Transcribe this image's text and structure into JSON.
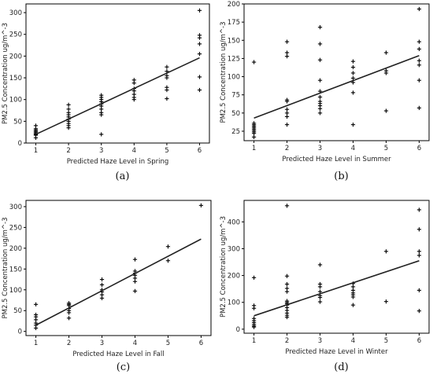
{
  "chart_data": [
    {
      "type": "scatter",
      "panel_label": "(a)",
      "xlabel": "Predicted Haze Level in Spring",
      "ylabel": "PM2.5 Concentration ug/m^-3",
      "xlim": [
        0.7,
        6.3
      ],
      "ylim": [
        0,
        320
      ],
      "xticks": [
        1,
        2,
        3,
        4,
        5,
        6
      ],
      "yticks": [
        0,
        50,
        100,
        150,
        200,
        250,
        300
      ],
      "marker": "+",
      "points": [
        {
          "x": 1,
          "y": 40
        },
        {
          "x": 1,
          "y": 33
        },
        {
          "x": 1,
          "y": 30
        },
        {
          "x": 1,
          "y": 27
        },
        {
          "x": 1,
          "y": 25
        },
        {
          "x": 1,
          "y": 22
        },
        {
          "x": 1,
          "y": 20
        },
        {
          "x": 1,
          "y": 18
        },
        {
          "x": 1,
          "y": 12
        },
        {
          "x": 2,
          "y": 88
        },
        {
          "x": 2,
          "y": 78
        },
        {
          "x": 2,
          "y": 70
        },
        {
          "x": 2,
          "y": 65
        },
        {
          "x": 2,
          "y": 60
        },
        {
          "x": 2,
          "y": 55
        },
        {
          "x": 2,
          "y": 50
        },
        {
          "x": 2,
          "y": 45
        },
        {
          "x": 2,
          "y": 40
        },
        {
          "x": 2,
          "y": 35
        },
        {
          "x": 3,
          "y": 110
        },
        {
          "x": 3,
          "y": 105
        },
        {
          "x": 3,
          "y": 100
        },
        {
          "x": 3,
          "y": 95
        },
        {
          "x": 3,
          "y": 90
        },
        {
          "x": 3,
          "y": 85
        },
        {
          "x": 3,
          "y": 78
        },
        {
          "x": 3,
          "y": 70
        },
        {
          "x": 3,
          "y": 65
        },
        {
          "x": 3,
          "y": 20
        },
        {
          "x": 4,
          "y": 145
        },
        {
          "x": 4,
          "y": 138
        },
        {
          "x": 4,
          "y": 125
        },
        {
          "x": 4,
          "y": 120
        },
        {
          "x": 4,
          "y": 112
        },
        {
          "x": 4,
          "y": 105
        },
        {
          "x": 4,
          "y": 100
        },
        {
          "x": 5,
          "y": 175
        },
        {
          "x": 5,
          "y": 165
        },
        {
          "x": 5,
          "y": 155
        },
        {
          "x": 5,
          "y": 150
        },
        {
          "x": 5,
          "y": 128
        },
        {
          "x": 5,
          "y": 122
        },
        {
          "x": 5,
          "y": 102
        },
        {
          "x": 6,
          "y": 305
        },
        {
          "x": 6,
          "y": 248
        },
        {
          "x": 6,
          "y": 242
        },
        {
          "x": 6,
          "y": 228
        },
        {
          "x": 6,
          "y": 205
        },
        {
          "x": 6,
          "y": 152
        },
        {
          "x": 6,
          "y": 122
        }
      ],
      "fit_line": {
        "x": [
          1,
          6
        ],
        "y": [
          20,
          196
        ]
      }
    },
    {
      "type": "scatter",
      "panel_label": "(b)",
      "xlabel": "Predicted Haze Level in Summer",
      "ylabel": "PM2.5 Concentration ug/m^-3",
      "xlim": [
        0.7,
        6.3
      ],
      "ylim": [
        12,
        200
      ],
      "xticks": [
        1,
        2,
        3,
        4,
        5,
        6
      ],
      "yticks": [
        25,
        50,
        75,
        100,
        125,
        150,
        175,
        200
      ],
      "marker": "+",
      "points": [
        {
          "x": 1,
          "y": 120
        },
        {
          "x": 1,
          "y": 36
        },
        {
          "x": 1,
          "y": 34
        },
        {
          "x": 1,
          "y": 32
        },
        {
          "x": 1,
          "y": 30
        },
        {
          "x": 1,
          "y": 28
        },
        {
          "x": 1,
          "y": 26
        },
        {
          "x": 1,
          "y": 24
        },
        {
          "x": 1,
          "y": 22
        },
        {
          "x": 1,
          "y": 17
        },
        {
          "x": 2,
          "y": 148
        },
        {
          "x": 2,
          "y": 133
        },
        {
          "x": 2,
          "y": 128
        },
        {
          "x": 2,
          "y": 68
        },
        {
          "x": 2,
          "y": 66
        },
        {
          "x": 2,
          "y": 55
        },
        {
          "x": 2,
          "y": 50
        },
        {
          "x": 2,
          "y": 45
        },
        {
          "x": 2,
          "y": 34
        },
        {
          "x": 3,
          "y": 168
        },
        {
          "x": 3,
          "y": 145
        },
        {
          "x": 3,
          "y": 123
        },
        {
          "x": 3,
          "y": 95
        },
        {
          "x": 3,
          "y": 80
        },
        {
          "x": 3,
          "y": 72
        },
        {
          "x": 3,
          "y": 66
        },
        {
          "x": 3,
          "y": 63
        },
        {
          "x": 3,
          "y": 60
        },
        {
          "x": 3,
          "y": 56
        },
        {
          "x": 3,
          "y": 50
        },
        {
          "x": 4,
          "y": 121
        },
        {
          "x": 4,
          "y": 113
        },
        {
          "x": 4,
          "y": 105
        },
        {
          "x": 4,
          "y": 98
        },
        {
          "x": 4,
          "y": 92
        },
        {
          "x": 4,
          "y": 78
        },
        {
          "x": 4,
          "y": 34
        },
        {
          "x": 5,
          "y": 133
        },
        {
          "x": 5,
          "y": 108
        },
        {
          "x": 5,
          "y": 105
        },
        {
          "x": 5,
          "y": 53
        },
        {
          "x": 6,
          "y": 193
        },
        {
          "x": 6,
          "y": 148
        },
        {
          "x": 6,
          "y": 138
        },
        {
          "x": 6,
          "y": 122
        },
        {
          "x": 6,
          "y": 116
        },
        {
          "x": 6,
          "y": 95
        },
        {
          "x": 6,
          "y": 57
        }
      ],
      "fit_line": {
        "x": [
          1,
          6
        ],
        "y": [
          43,
          129
        ]
      }
    },
    {
      "type": "scatter",
      "panel_label": "(c)",
      "xlabel": "Predicted Haze Level in Fall",
      "ylabel": "PM2.5 Concentration ug/m^-3",
      "xlim": [
        0.7,
        6.3
      ],
      "ylim": [
        -10,
        315
      ],
      "xticks": [
        1,
        2,
        3,
        4,
        5,
        6
      ],
      "yticks": [
        0,
        50,
        100,
        150,
        200,
        250,
        300
      ],
      "marker": "+",
      "points": [
        {
          "x": 1,
          "y": 65
        },
        {
          "x": 1,
          "y": 40
        },
        {
          "x": 1,
          "y": 35
        },
        {
          "x": 1,
          "y": 28
        },
        {
          "x": 1,
          "y": 20
        },
        {
          "x": 1,
          "y": 15
        },
        {
          "x": 1,
          "y": 8
        },
        {
          "x": 2,
          "y": 68
        },
        {
          "x": 2,
          "y": 65
        },
        {
          "x": 2,
          "y": 62
        },
        {
          "x": 2,
          "y": 55
        },
        {
          "x": 2,
          "y": 50
        },
        {
          "x": 2,
          "y": 45
        },
        {
          "x": 2,
          "y": 32
        },
        {
          "x": 3,
          "y": 125
        },
        {
          "x": 3,
          "y": 112
        },
        {
          "x": 3,
          "y": 100
        },
        {
          "x": 3,
          "y": 95
        },
        {
          "x": 3,
          "y": 88
        },
        {
          "x": 3,
          "y": 80
        },
        {
          "x": 4,
          "y": 173
        },
        {
          "x": 4,
          "y": 145
        },
        {
          "x": 4,
          "y": 140
        },
        {
          "x": 4,
          "y": 135
        },
        {
          "x": 4,
          "y": 128
        },
        {
          "x": 4,
          "y": 120
        },
        {
          "x": 4,
          "y": 97
        },
        {
          "x": 5,
          "y": 204
        },
        {
          "x": 5,
          "y": 170
        },
        {
          "x": 6,
          "y": 303
        }
      ],
      "fit_line": {
        "x": [
          1,
          6
        ],
        "y": [
          15,
          222
        ]
      }
    },
    {
      "type": "scatter",
      "panel_label": "(d)",
      "xlabel": "Predicted Haze Level in Winter",
      "ylabel": "PM2.5 Concentration ug/m^-3",
      "xlim": [
        0.7,
        6.3
      ],
      "ylim": [
        -15,
        480
      ],
      "xticks": [
        1,
        2,
        3,
        4,
        5,
        6
      ],
      "yticks": [
        0,
        100,
        200,
        300,
        400
      ],
      "marker": "+",
      "points": [
        {
          "x": 1,
          "y": 192
        },
        {
          "x": 1,
          "y": 88
        },
        {
          "x": 1,
          "y": 78
        },
        {
          "x": 1,
          "y": 40
        },
        {
          "x": 1,
          "y": 32
        },
        {
          "x": 1,
          "y": 25
        },
        {
          "x": 1,
          "y": 18
        },
        {
          "x": 1,
          "y": 12
        },
        {
          "x": 1,
          "y": 8
        },
        {
          "x": 2,
          "y": 460
        },
        {
          "x": 2,
          "y": 198
        },
        {
          "x": 2,
          "y": 168
        },
        {
          "x": 2,
          "y": 152
        },
        {
          "x": 2,
          "y": 140
        },
        {
          "x": 2,
          "y": 105
        },
        {
          "x": 2,
          "y": 100
        },
        {
          "x": 2,
          "y": 95
        },
        {
          "x": 2,
          "y": 90
        },
        {
          "x": 2,
          "y": 80
        },
        {
          "x": 2,
          "y": 70
        },
        {
          "x": 2,
          "y": 60
        },
        {
          "x": 2,
          "y": 52
        },
        {
          "x": 2,
          "y": 45
        },
        {
          "x": 3,
          "y": 240
        },
        {
          "x": 3,
          "y": 168
        },
        {
          "x": 3,
          "y": 158
        },
        {
          "x": 3,
          "y": 140
        },
        {
          "x": 3,
          "y": 125
        },
        {
          "x": 3,
          "y": 118
        },
        {
          "x": 3,
          "y": 102
        },
        {
          "x": 4,
          "y": 170
        },
        {
          "x": 4,
          "y": 158
        },
        {
          "x": 4,
          "y": 145
        },
        {
          "x": 4,
          "y": 135
        },
        {
          "x": 4,
          "y": 128
        },
        {
          "x": 4,
          "y": 120
        },
        {
          "x": 4,
          "y": 90
        },
        {
          "x": 5,
          "y": 290
        },
        {
          "x": 5,
          "y": 103
        },
        {
          "x": 6,
          "y": 445
        },
        {
          "x": 6,
          "y": 372
        },
        {
          "x": 6,
          "y": 290
        },
        {
          "x": 6,
          "y": 275
        },
        {
          "x": 6,
          "y": 145
        },
        {
          "x": 6,
          "y": 68
        }
      ],
      "fit_line": {
        "x": [
          1,
          6
        ],
        "y": [
          50,
          255
        ]
      }
    }
  ]
}
